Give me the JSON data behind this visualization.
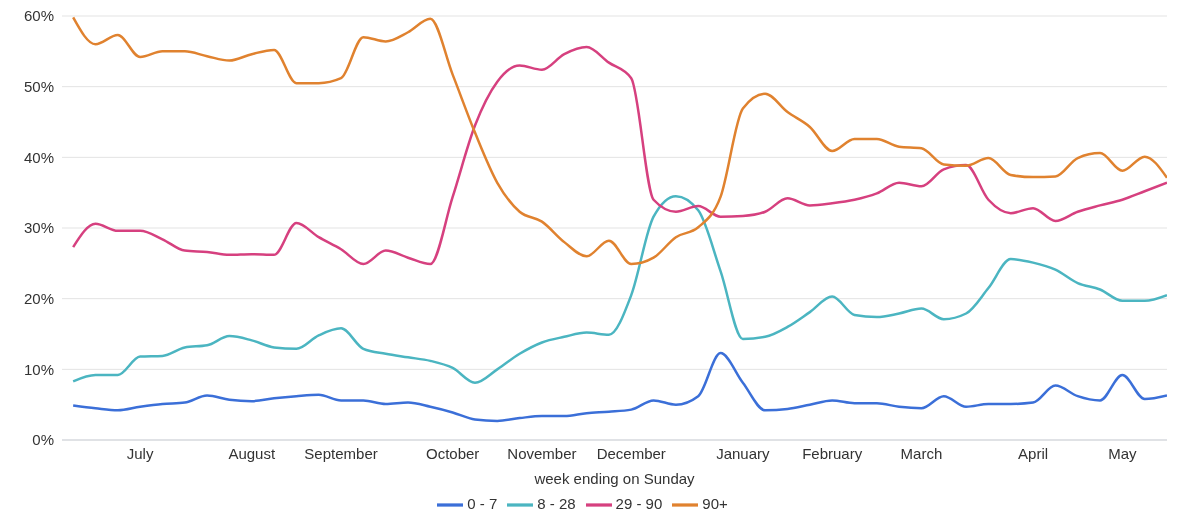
{
  "chart_data": {
    "type": "line",
    "xlabel": "week ending on Sunday",
    "categories": [
      null,
      null,
      null,
      "July",
      null,
      null,
      null,
      null,
      "August",
      null,
      null,
      null,
      "September",
      null,
      null,
      null,
      null,
      "October",
      null,
      null,
      null,
      "November",
      null,
      null,
      null,
      "December",
      null,
      null,
      null,
      null,
      "January",
      null,
      null,
      null,
      "February",
      null,
      null,
      null,
      "March",
      null,
      null,
      null,
      null,
      "April",
      null,
      null,
      null,
      "May",
      null,
      null
    ],
    "series": [
      {
        "name": "0 - 7",
        "color": "#3b6fd8",
        "values": [
          4.9,
          4.5,
          4.2,
          4.7,
          5.1,
          5.3,
          6.3,
          5.7,
          5.5,
          5.9,
          6.2,
          6.4,
          5.6,
          5.6,
          5.1,
          5.3,
          4.7,
          3.9,
          2.9,
          2.7,
          3.1,
          3.4,
          3.4,
          3.8,
          4.0,
          4.3,
          5.6,
          5.0,
          6.2,
          12.3,
          8.1,
          4.2,
          4.4,
          5.0,
          5.6,
          5.2,
          5.2,
          4.7,
          4.5,
          6.2,
          4.7,
          5.1,
          5.1,
          5.3,
          7.7,
          6.2,
          5.6,
          9.2,
          5.8,
          6.3
        ]
      },
      {
        "name": "8 - 28",
        "color": "#4bb5c1",
        "values": [
          8.3,
          9.2,
          9.2,
          11.8,
          11.9,
          13.1,
          13.4,
          14.7,
          14.1,
          13.1,
          12.9,
          14.8,
          15.8,
          12.9,
          12.2,
          11.7,
          11.2,
          10.2,
          8.1,
          10.0,
          12.2,
          13.8,
          14.6,
          15.2,
          14.9,
          20.5,
          31.6,
          34.5,
          32.5,
          23.9,
          14.3,
          14.6,
          16.0,
          18.1,
          20.3,
          17.7,
          17.4,
          17.9,
          18.6,
          17.1,
          17.9,
          21.5,
          25.6,
          25.1,
          24.1,
          22.2,
          21.3,
          19.7,
          19.7,
          20.5
        ]
      },
      {
        "name": "29 - 90",
        "color": "#d6407f",
        "values": [
          27.3,
          30.6,
          29.6,
          29.6,
          28.4,
          26.8,
          26.6,
          26.2,
          26.3,
          26.2,
          30.7,
          28.7,
          27.0,
          24.9,
          26.8,
          25.8,
          24.9,
          34.4,
          44.5,
          50.7,
          53.0,
          52.4,
          54.6,
          55.6,
          53.4,
          51.2,
          34.0,
          32.3,
          33.1,
          31.6,
          31.7,
          32.3,
          34.2,
          33.2,
          33.5,
          34.0,
          34.9,
          36.4,
          35.9,
          38.3,
          38.9,
          34.0,
          32.1,
          32.8,
          31.0,
          32.3,
          33.2,
          34.0,
          35.2,
          36.4
        ]
      },
      {
        "name": "90+",
        "color": "#e0822f",
        "values": [
          59.8,
          56.0,
          57.3,
          54.2,
          55.0,
          55.0,
          54.3,
          53.7,
          54.6,
          55.2,
          50.5,
          50.5,
          51.2,
          57.0,
          56.4,
          57.7,
          59.6,
          51.7,
          43.5,
          36.4,
          32.3,
          30.9,
          28.0,
          26.0,
          28.2,
          24.9,
          25.8,
          28.7,
          30.1,
          34.4,
          46.9,
          49.0,
          46.4,
          44.3,
          40.9,
          42.6,
          42.6,
          41.5,
          41.3,
          39.0,
          38.8,
          39.9,
          37.5,
          37.2,
          37.3,
          39.9,
          40.6,
          38.1,
          40.1,
          37.1
        ]
      }
    ],
    "ylim": [
      0,
      60
    ],
    "yticks": [
      {
        "value": 0,
        "label": "0%"
      },
      {
        "value": 10,
        "label": "10%"
      },
      {
        "value": 20,
        "label": "20%"
      },
      {
        "value": 30,
        "label": "30%"
      },
      {
        "value": 40,
        "label": "40%"
      },
      {
        "value": 50,
        "label": "50%"
      },
      {
        "value": 60,
        "label": "60%"
      }
    ],
    "grid": "y",
    "legend": "bottom",
    "marker": "none",
    "line_style": "solid"
  }
}
